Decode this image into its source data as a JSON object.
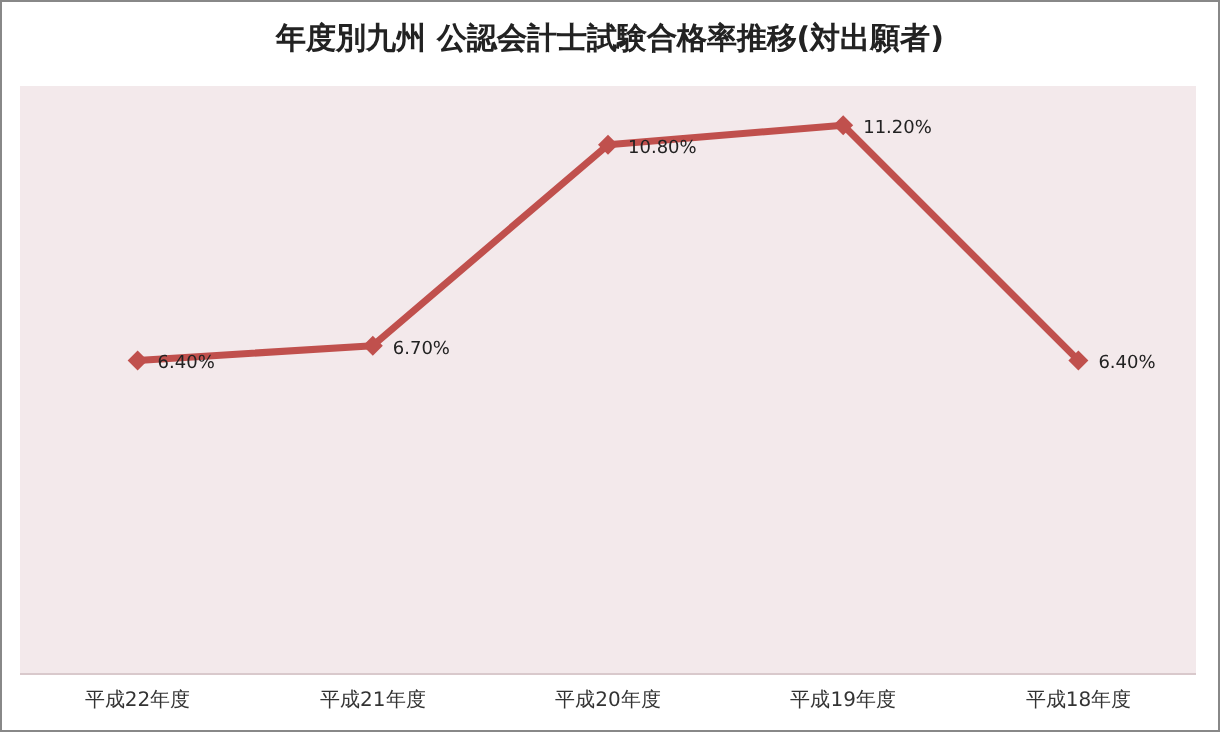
{
  "chart_data": {
    "type": "line",
    "title": "年度別九州  公認会計士試験合格率推移(対出願者)",
    "categories": [
      "平成22年度",
      "平成21年度",
      "平成20年度",
      "平成19年度",
      "平成18年度"
    ],
    "series": [
      {
        "color": "#c0504d",
        "values": [
          6.4,
          6.7,
          10.8,
          11.2,
          6.4
        ],
        "value_labels": [
          "6.40%",
          "6.70%",
          "10.80%",
          "11.20%",
          "6.40%"
        ]
      }
    ],
    "ylim": [
      0,
      12
    ],
    "marker": "diamond",
    "line_style": "solid",
    "tick_labels": "x"
  }
}
